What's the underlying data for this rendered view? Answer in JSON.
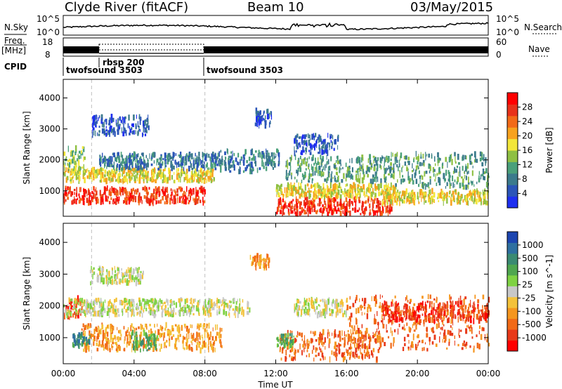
{
  "header": {
    "station": "Clyde River (fitACF)",
    "beam": "Beam 10",
    "date": "03/May/2015"
  },
  "top_panels": {
    "nsky_label": "N.Sky",
    "nsky_ticks": [
      "10^5",
      "10^0"
    ],
    "nsearch_label": "N.Search",
    "nsearch_ticks": [
      "10^5",
      "10^0"
    ],
    "freq_label_1": "Freq.",
    "freq_label_2": "[MHz]",
    "freq_ticks": [
      "18",
      "8"
    ],
    "nave_label": "Nave",
    "nave_ticks": [
      "60",
      "0"
    ],
    "cpid_label": "CPID",
    "cpid_segments": [
      {
        "name": "twofsound 3503",
        "start_h": 0,
        "end_h": 1.6
      },
      {
        "name": "rbsp 200",
        "start_h": 1.6,
        "end_h": 8.0
      },
      {
        "name": "twofsound 3503",
        "start_h": 8.0,
        "end_h": 24
      }
    ]
  },
  "chart_data": [
    {
      "type": "heatmap",
      "quantity": "Power",
      "xlabel": "Time UT",
      "ylabel": "Slant Range [km]",
      "xlim": [
        0,
        24
      ],
      "ylim": [
        180,
        4600
      ],
      "xticks": [
        "00:00",
        "04:00",
        "08:00",
        "12:00",
        "16:00",
        "20:00",
        "00:00"
      ],
      "yticks": [
        1000,
        2000,
        3000,
        4000
      ],
      "colorbar": {
        "label": "Power [dB]",
        "ticks": [
          4,
          8,
          12,
          16,
          20,
          24,
          28
        ],
        "colors": [
          "#1e2ff0",
          "#2b55b8",
          "#3b7a8c",
          "#4aa07a",
          "#8fc043",
          "#f2e63a",
          "#f7a21e",
          "#f26a18",
          "#e8321a",
          "#ff0000"
        ]
      },
      "regions": [
        {
          "t0": 0.0,
          "t1": 8.0,
          "r0": 600,
          "r1": 1100,
          "level": 8
        },
        {
          "t0": 0.0,
          "t1": 8.5,
          "r0": 1300,
          "r1": 1700,
          "level": 5
        },
        {
          "t0": 0.0,
          "t1": 1.2,
          "r0": 1700,
          "r1": 2400,
          "level": 4
        },
        {
          "t0": 2.0,
          "t1": 8.8,
          "r0": 1700,
          "r1": 2200,
          "level": 2
        },
        {
          "t0": 1.6,
          "t1": 4.8,
          "r0": 2800,
          "r1": 3400,
          "level": 1
        },
        {
          "t0": 8.8,
          "t1": 11.0,
          "r0": 1600,
          "r1": 2300,
          "level": 2
        },
        {
          "t0": 10.8,
          "t1": 11.8,
          "r0": 3100,
          "r1": 3600,
          "level": 1
        },
        {
          "t0": 11.0,
          "t1": 12.2,
          "r0": 1700,
          "r1": 2300,
          "level": 2
        },
        {
          "t0": 12.0,
          "t1": 18.5,
          "r0": 250,
          "r1": 750,
          "level": 8
        },
        {
          "t0": 12.0,
          "t1": 18.8,
          "r0": 800,
          "r1": 1200,
          "level": 5
        },
        {
          "t0": 12.5,
          "t1": 18.5,
          "r0": 1300,
          "r1": 2100,
          "level": 3
        },
        {
          "t0": 18.0,
          "t1": 24.0,
          "r0": 600,
          "r1": 1000,
          "level": 5
        },
        {
          "t0": 18.0,
          "t1": 24.0,
          "r0": 1100,
          "r1": 2200,
          "level": 3
        },
        {
          "t0": 13.0,
          "t1": 15.5,
          "r0": 2200,
          "r1": 2800,
          "level": 1
        }
      ]
    },
    {
      "type": "heatmap",
      "quantity": "Velocity",
      "xlabel": "Time UT",
      "ylabel": "Slant Range [km]",
      "xlim": [
        0,
        24
      ],
      "ylim": [
        180,
        4600
      ],
      "xticks": [
        "00:00",
        "04:00",
        "08:00",
        "12:00",
        "16:00",
        "20:00",
        "00:00"
      ],
      "yticks": [
        1000,
        2000,
        3000,
        4000
      ],
      "colorbar": {
        "label": "Velocity [m s^-1]",
        "ticks": [
          "1000",
          "500",
          "100",
          "25",
          "-25",
          "-100",
          "-500",
          "-1000"
        ],
        "colors": [
          "#1c45b0",
          "#2e6fa0",
          "#3a8a72",
          "#4fa64f",
          "#7fd243",
          "#c8c8c8",
          "#f4c23a",
          "#f5961f",
          "#f16a17",
          "#e8391a",
          "#ff0000"
        ]
      },
      "regions": [
        {
          "t0": 0.0,
          "t1": 1.0,
          "r0": 1600,
          "r1": 2300,
          "level": 9
        },
        {
          "t0": 0.0,
          "t1": 10.5,
          "r0": 1700,
          "r1": 2200,
          "level": 5
        },
        {
          "t0": 1.0,
          "t1": 9.0,
          "r0": 600,
          "r1": 1400,
          "level": 7
        },
        {
          "t0": 3.8,
          "t1": 5.3,
          "r0": 600,
          "r1": 1200,
          "level": 3
        },
        {
          "t0": 0.5,
          "t1": 1.5,
          "r0": 700,
          "r1": 1100,
          "level": 2
        },
        {
          "t0": 1.5,
          "t1": 4.5,
          "r0": 2700,
          "r1": 3200,
          "level": 5
        },
        {
          "t0": 10.5,
          "t1": 11.6,
          "r0": 3200,
          "r1": 3600,
          "level": 7
        },
        {
          "t0": 12.2,
          "t1": 18.0,
          "r0": 300,
          "r1": 1200,
          "level": 8
        },
        {
          "t0": 12.0,
          "t1": 13.0,
          "r0": 700,
          "r1": 1100,
          "level": 3
        },
        {
          "t0": 13.0,
          "t1": 16.0,
          "r0": 1700,
          "r1": 2200,
          "level": 5
        },
        {
          "t0": 16.0,
          "t1": 24.0,
          "r0": 600,
          "r1": 2300,
          "level": 8
        },
        {
          "t0": 18.0,
          "t1": 24.0,
          "r0": 1500,
          "r1": 2100,
          "level": 9
        }
      ]
    }
  ]
}
